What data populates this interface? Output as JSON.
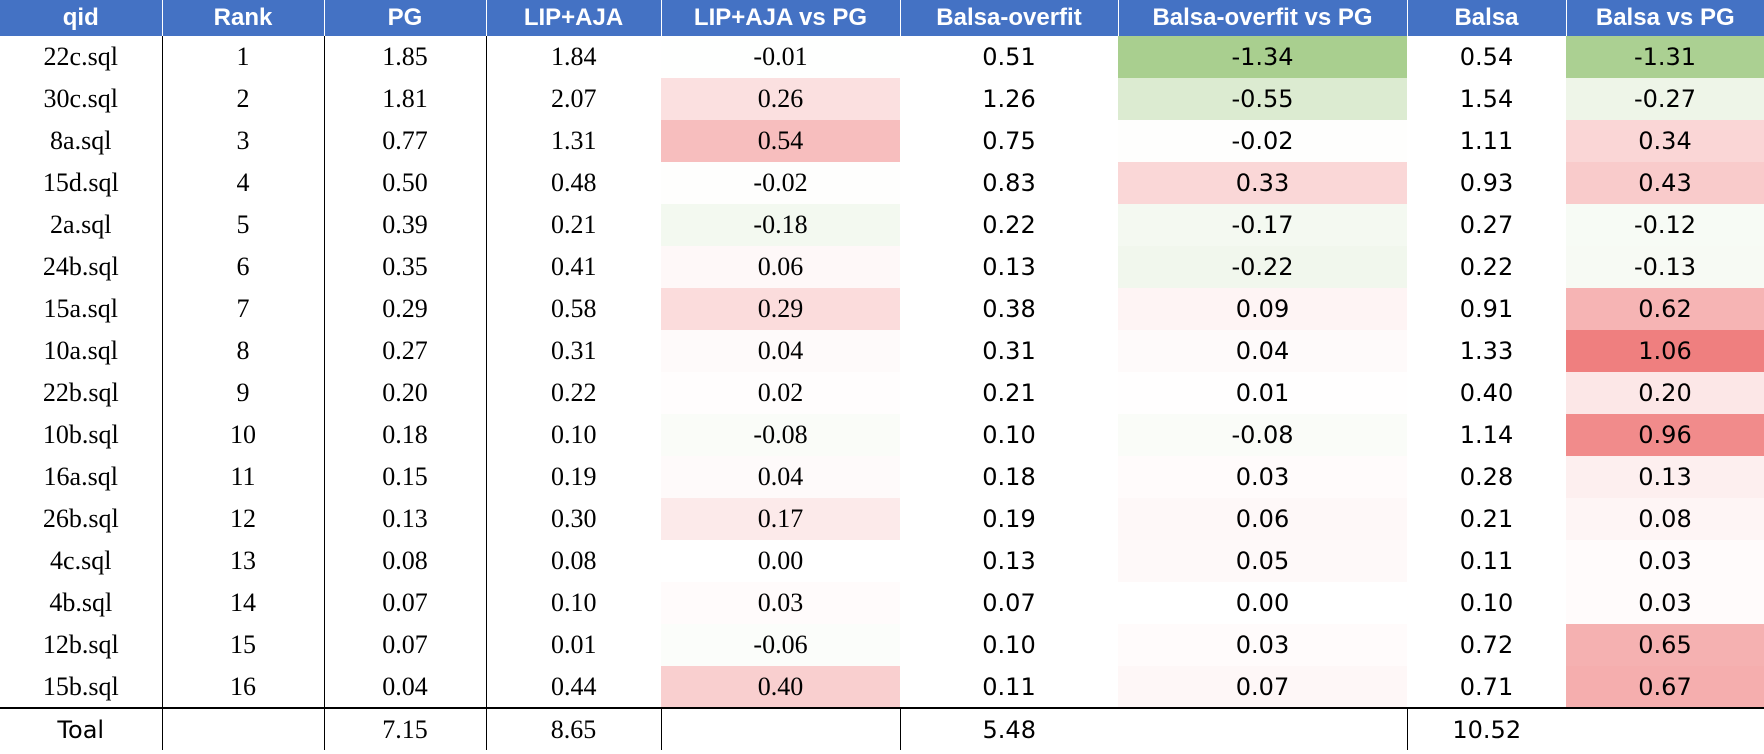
{
  "headers": [
    "qid",
    "Rank",
    "PG",
    "LIP+AJA",
    "LIP+AJA vs PG",
    "Balsa-overfit",
    "Balsa-overfit vs PG",
    "Balsa",
    "Balsa vs PG"
  ],
  "rows": [
    {
      "qid": "22c.sql",
      "rank": "1",
      "pg": "1.85",
      "lip": "1.84",
      "lip_vs": "-0.01",
      "bo": "0.51",
      "bo_vs": "-1.34",
      "balsa": "0.54",
      "balsa_vs": "-1.31"
    },
    {
      "qid": "30c.sql",
      "rank": "2",
      "pg": "1.81",
      "lip": "2.07",
      "lip_vs": "0.26",
      "bo": "1.26",
      "bo_vs": "-0.55",
      "balsa": "1.54",
      "balsa_vs": "-0.27"
    },
    {
      "qid": "8a.sql",
      "rank": "3",
      "pg": "0.77",
      "lip": "1.31",
      "lip_vs": "0.54",
      "bo": "0.75",
      "bo_vs": "-0.02",
      "balsa": "1.11",
      "balsa_vs": "0.34"
    },
    {
      "qid": "15d.sql",
      "rank": "4",
      "pg": "0.50",
      "lip": "0.48",
      "lip_vs": "-0.02",
      "bo": "0.83",
      "bo_vs": "0.33",
      "balsa": "0.93",
      "balsa_vs": "0.43"
    },
    {
      "qid": "2a.sql",
      "rank": "5",
      "pg": "0.39",
      "lip": "0.21",
      "lip_vs": "-0.18",
      "bo": "0.22",
      "bo_vs": "-0.17",
      "balsa": "0.27",
      "balsa_vs": "-0.12"
    },
    {
      "qid": "24b.sql",
      "rank": "6",
      "pg": "0.35",
      "lip": "0.41",
      "lip_vs": "0.06",
      "bo": "0.13",
      "bo_vs": "-0.22",
      "balsa": "0.22",
      "balsa_vs": "-0.13"
    },
    {
      "qid": "15a.sql",
      "rank": "7",
      "pg": "0.29",
      "lip": "0.58",
      "lip_vs": "0.29",
      "bo": "0.38",
      "bo_vs": "0.09",
      "balsa": "0.91",
      "balsa_vs": "0.62"
    },
    {
      "qid": "10a.sql",
      "rank": "8",
      "pg": "0.27",
      "lip": "0.31",
      "lip_vs": "0.04",
      "bo": "0.31",
      "bo_vs": "0.04",
      "balsa": "1.33",
      "balsa_vs": "1.06"
    },
    {
      "qid": "22b.sql",
      "rank": "9",
      "pg": "0.20",
      "lip": "0.22",
      "lip_vs": "0.02",
      "bo": "0.21",
      "bo_vs": "0.01",
      "balsa": "0.40",
      "balsa_vs": "0.20"
    },
    {
      "qid": "10b.sql",
      "rank": "10",
      "pg": "0.18",
      "lip": "0.10",
      "lip_vs": "-0.08",
      "bo": "0.10",
      "bo_vs": "-0.08",
      "balsa": "1.14",
      "balsa_vs": "0.96"
    },
    {
      "qid": "16a.sql",
      "rank": "11",
      "pg": "0.15",
      "lip": "0.19",
      "lip_vs": "0.04",
      "bo": "0.18",
      "bo_vs": "0.03",
      "balsa": "0.28",
      "balsa_vs": "0.13"
    },
    {
      "qid": "26b.sql",
      "rank": "12",
      "pg": "0.13",
      "lip": "0.30",
      "lip_vs": "0.17",
      "bo": "0.19",
      "bo_vs": "0.06",
      "balsa": "0.21",
      "balsa_vs": "0.08"
    },
    {
      "qid": "4c.sql",
      "rank": "13",
      "pg": "0.08",
      "lip": "0.08",
      "lip_vs": "0.00",
      "bo": "0.13",
      "bo_vs": "0.05",
      "balsa": "0.11",
      "balsa_vs": "0.03"
    },
    {
      "qid": "4b.sql",
      "rank": "14",
      "pg": "0.07",
      "lip": "0.10",
      "lip_vs": "0.03",
      "bo": "0.07",
      "bo_vs": "0.00",
      "balsa": "0.10",
      "balsa_vs": "0.03"
    },
    {
      "qid": "12b.sql",
      "rank": "15",
      "pg": "0.07",
      "lip": "0.01",
      "lip_vs": "-0.06",
      "bo": "0.10",
      "bo_vs": "0.03",
      "balsa": "0.72",
      "balsa_vs": "0.65"
    },
    {
      "qid": "15b.sql",
      "rank": "16",
      "pg": "0.04",
      "lip": "0.44",
      "lip_vs": "0.40",
      "bo": "0.11",
      "bo_vs": "0.07",
      "balsa": "0.71",
      "balsa_vs": "0.67"
    }
  ],
  "total": {
    "label": "Toal",
    "pg": "7.15",
    "lip": "8.65",
    "bo": "5.48",
    "balsa": "10.52"
  },
  "colors": {
    "header_bg": "#4472c4",
    "header_text": "#ffffff",
    "positive_max": "#ef7f7f",
    "negative_max": "#a9cf8f",
    "neutral": "#ffffff"
  }
}
